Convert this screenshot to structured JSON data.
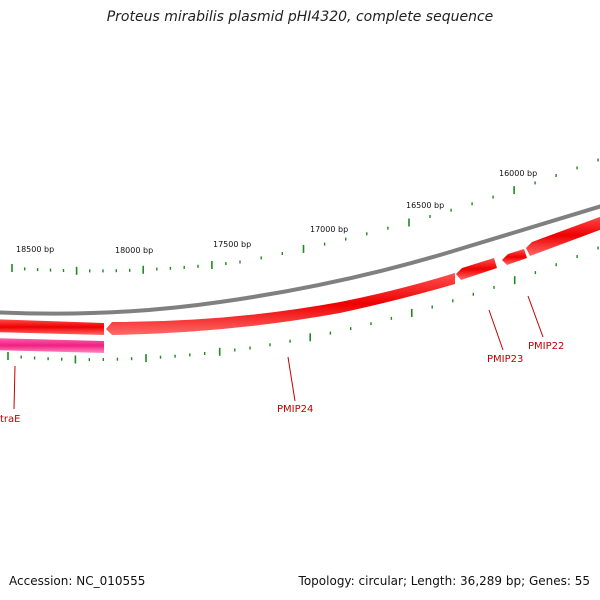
{
  "title": "Proteus mirabilis plasmid pHI4320, complete sequence",
  "footer": {
    "accession": "Accession: NC_010555",
    "summary": "Topology: circular; Length: 36,289 bp; Genes: 55"
  },
  "scale_labels": [
    "18500 bp",
    "18000 bp",
    "17500 bp",
    "17000 bp",
    "16500 bp",
    "16000 bp"
  ],
  "genes": [
    {
      "label": "traE",
      "color": "#ff2a8c"
    },
    {
      "label": "PMIP24",
      "color": "#ee0000"
    },
    {
      "label": "PMIP23",
      "color": "#ee0000"
    },
    {
      "label": "PMIP22",
      "color": "#ee0000"
    }
  ],
  "colors": {
    "backbone": "#808080",
    "tick": "#1f8a1f",
    "forward_gene": "#ee0000",
    "reverse_gene": "#ff2a8c",
    "label": "#c00000"
  }
}
